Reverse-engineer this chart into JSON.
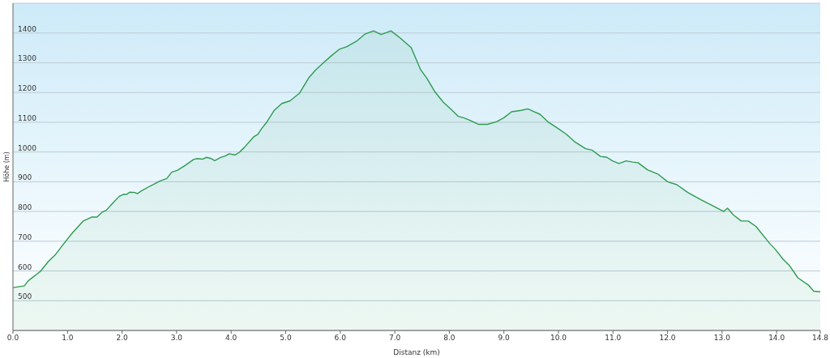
{
  "chart_data": {
    "type": "area",
    "xlabel": "Distanz (km)",
    "ylabel": "Höhe (m)",
    "color": "#2e9b4f",
    "x": [
      0,
      0.21,
      0.28,
      0.5,
      0.65,
      0.77,
      0.92,
      1.09,
      1.29,
      1.44,
      1.54,
      1.63,
      1.71,
      1.83,
      1.95,
      2.03,
      2.08,
      2.14,
      2.23,
      2.28,
      2.37,
      2.52,
      2.69,
      2.82,
      2.91,
      3.01,
      3.16,
      3.31,
      3.38,
      3.48,
      3.55,
      3.63,
      3.7,
      3.8,
      3.9,
      3.96,
      4.07,
      4.15,
      4.24,
      4.42,
      4.49,
      4.56,
      4.64,
      4.69,
      4.79,
      4.93,
      5.08,
      5.25,
      5.43,
      5.55,
      5.7,
      5.84,
      5.99,
      6.12,
      6.31,
      6.46,
      6.61,
      6.75,
      6.93,
      7.1,
      7.3,
      7.47,
      7.59,
      7.74,
      7.89,
      8.04,
      8.16,
      8.26,
      8.38,
      8.53,
      8.7,
      8.87,
      9,
      9.14,
      9.32,
      9.44,
      9.56,
      9.66,
      9.81,
      9.96,
      10.15,
      10.3,
      10.5,
      10.62,
      10.77,
      10.89,
      10.99,
      11.11,
      11.24,
      11.36,
      11.46,
      11.63,
      11.83,
      12,
      12.17,
      12.37,
      12.62,
      12.81,
      13.03,
      13.1,
      13.21,
      13.35,
      13.48,
      13.62,
      13.87,
      13.97,
      14.12,
      14.24,
      14.39,
      14.58,
      14.68,
      14.8
    ],
    "values": [
      544,
      550,
      567,
      598,
      632,
      653,
      689,
      728,
      768,
      781,
      781,
      797,
      804,
      828,
      851,
      858,
      857,
      865,
      864,
      860,
      871,
      886,
      902,
      911,
      932,
      938,
      955,
      975,
      978,
      976,
      982,
      978,
      971,
      981,
      987,
      994,
      990,
      999,
      1015,
      1052,
      1059,
      1079,
      1097,
      1111,
      1140,
      1163,
      1172,
      1197,
      1251,
      1276,
      1301,
      1324,
      1346,
      1354,
      1374,
      1397,
      1407,
      1395,
      1407,
      1383,
      1351,
      1278,
      1247,
      1201,
      1167,
      1142,
      1120,
      1115,
      1106,
      1093,
      1093,
      1102,
      1115,
      1135,
      1140,
      1145,
      1135,
      1127,
      1101,
      1083,
      1059,
      1034,
      1011,
      1006,
      985,
      982,
      970,
      961,
      970,
      966,
      964,
      940,
      925,
      900,
      890,
      864,
      839,
      821,
      800,
      811,
      788,
      768,
      768,
      750,
      693,
      674,
      639,
      617,
      577,
      553,
      532,
      530
    ],
    "xlim": [
      0,
      14.8
    ],
    "xticks": [
      {
        "value": 0,
        "label": "0.0"
      },
      {
        "value": 1,
        "label": "1.0"
      },
      {
        "value": 2,
        "label": "2.0"
      },
      {
        "value": 3,
        "label": "3.0"
      },
      {
        "value": 4,
        "label": "4.0"
      },
      {
        "value": 5,
        "label": "5.0"
      },
      {
        "value": 6,
        "label": "6.0"
      },
      {
        "value": 7,
        "label": "7.0"
      },
      {
        "value": 8,
        "label": "8.0"
      },
      {
        "value": 9,
        "label": "9.0"
      },
      {
        "value": 10,
        "label": "10.0"
      },
      {
        "value": 11,
        "label": "11.0"
      },
      {
        "value": 12,
        "label": "12.0"
      },
      {
        "value": 13,
        "label": "13.0"
      },
      {
        "value": 14,
        "label": "14.0"
      },
      {
        "value": 14.8,
        "label": "14.8"
      }
    ],
    "ylim": [
      400,
      1500
    ],
    "yticks": [
      500,
      600,
      700,
      800,
      900,
      1000,
      1100,
      1200,
      1300,
      1400
    ],
    "grid": "y"
  }
}
